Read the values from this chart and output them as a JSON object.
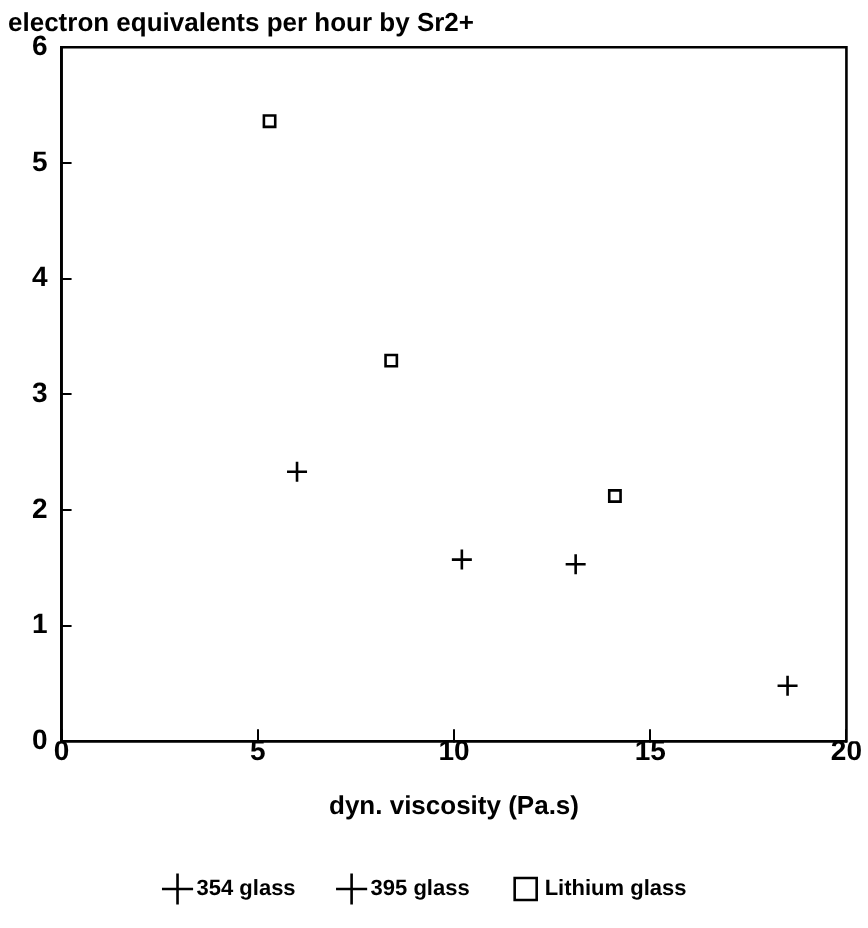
{
  "chart_data": {
    "type": "scatter",
    "title": "electron equivalents per hour by Sr2+",
    "xlabel": "dyn. viscosity (Pa.s)",
    "xlim": [
      0,
      20
    ],
    "xticks": [
      0,
      5,
      10,
      15,
      20
    ],
    "ylim": [
      0,
      6
    ],
    "yticks": [
      0,
      1,
      2,
      3,
      4,
      5,
      6
    ],
    "grid": false,
    "legend": "bottom",
    "series": [
      {
        "name": "354 glass",
        "color": "#000000",
        "marker": "cross",
        "x": [
          13.1
        ],
        "values": [
          1.53
        ]
      },
      {
        "name": "395 glass",
        "color": "#000000",
        "marker": "cross",
        "x": [
          6.0,
          10.2,
          18.5
        ],
        "values": [
          2.33,
          1.57,
          0.48
        ]
      },
      {
        "name": "Lithium glass",
        "color": "#000000",
        "marker": "square",
        "x": [
          5.3,
          8.4,
          14.1
        ],
        "values": [
          5.36,
          3.29,
          2.12
        ]
      }
    ]
  }
}
